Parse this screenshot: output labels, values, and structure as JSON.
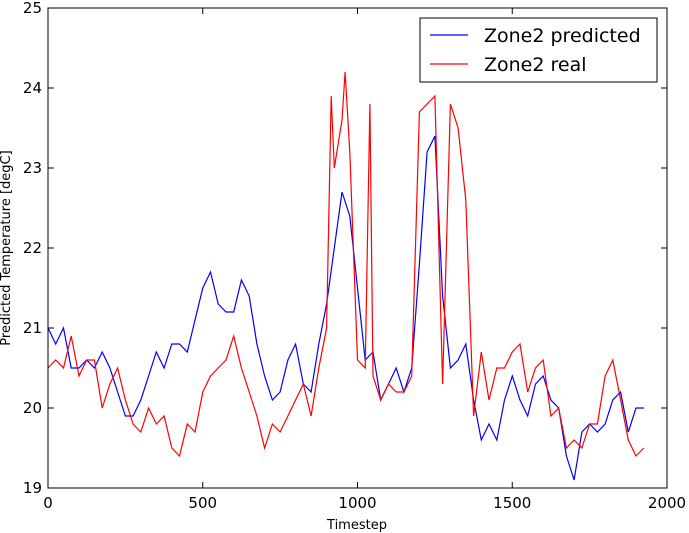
{
  "chart_data": {
    "type": "line",
    "xlabel": "Timestep",
    "ylabel": "Predicted Temperature [degC]",
    "xlim": [
      0,
      2000
    ],
    "ylim": [
      19,
      25
    ],
    "xticks": [
      0,
      500,
      1000,
      1500,
      2000
    ],
    "yticks": [
      19,
      20,
      21,
      22,
      23,
      24,
      25
    ],
    "grid": false,
    "legend": "upper right",
    "series": [
      {
        "name": "Zone2 predicted",
        "color": "#0000ff",
        "x": [
          0,
          25,
          50,
          75,
          100,
          125,
          150,
          175,
          200,
          225,
          250,
          275,
          300,
          325,
          350,
          375,
          400,
          425,
          450,
          475,
          500,
          525,
          550,
          575,
          600,
          625,
          650,
          675,
          700,
          725,
          750,
          775,
          800,
          825,
          850,
          875,
          900,
          925,
          950,
          975,
          1000,
          1025,
          1050,
          1075,
          1100,
          1125,
          1150,
          1175,
          1200,
          1225,
          1250,
          1275,
          1300,
          1325,
          1350,
          1375,
          1400,
          1425,
          1450,
          1475,
          1500,
          1525,
          1550,
          1575,
          1600,
          1625,
          1650,
          1675,
          1700,
          1725,
          1750,
          1775,
          1800,
          1825,
          1850,
          1875,
          1900,
          1925
        ],
        "values": [
          21.0,
          20.8,
          21.0,
          20.5,
          20.5,
          20.6,
          20.5,
          20.7,
          20.5,
          20.2,
          19.9,
          19.9,
          20.1,
          20.4,
          20.7,
          20.5,
          20.8,
          20.8,
          20.7,
          21.1,
          21.5,
          21.7,
          21.3,
          21.2,
          21.2,
          21.6,
          21.4,
          20.8,
          20.4,
          20.1,
          20.2,
          20.6,
          20.8,
          20.3,
          20.2,
          20.8,
          21.3,
          22.0,
          22.7,
          22.4,
          21.5,
          20.6,
          20.7,
          20.1,
          20.3,
          20.5,
          20.2,
          20.5,
          21.8,
          23.2,
          23.4,
          21.4,
          20.5,
          20.6,
          20.8,
          20.1,
          19.6,
          19.8,
          19.6,
          20.1,
          20.4,
          20.1,
          19.9,
          20.3,
          20.4,
          20.1,
          20.0,
          19.4,
          19.1,
          19.7,
          19.8,
          19.7,
          19.8,
          20.1,
          20.2,
          19.7,
          20.0,
          20.0
        ]
      },
      {
        "name": "Zone2 real",
        "color": "#ff0000",
        "x": [
          0,
          25,
          50,
          75,
          100,
          125,
          150,
          175,
          200,
          225,
          250,
          275,
          300,
          325,
          350,
          375,
          400,
          425,
          450,
          475,
          500,
          525,
          550,
          575,
          600,
          625,
          650,
          675,
          700,
          725,
          750,
          775,
          800,
          825,
          850,
          875,
          900,
          915,
          925,
          950,
          960,
          975,
          1000,
          1025,
          1040,
          1050,
          1075,
          1100,
          1125,
          1150,
          1175,
          1200,
          1225,
          1250,
          1275,
          1300,
          1325,
          1350,
          1375,
          1400,
          1425,
          1450,
          1475,
          1500,
          1525,
          1550,
          1575,
          1600,
          1625,
          1650,
          1675,
          1700,
          1725,
          1750,
          1775,
          1800,
          1825,
          1850,
          1875,
          1900,
          1925
        ],
        "values": [
          20.5,
          20.6,
          20.5,
          20.9,
          20.4,
          20.6,
          20.6,
          20.0,
          20.3,
          20.5,
          20.1,
          19.8,
          19.7,
          20.0,
          19.8,
          19.9,
          19.5,
          19.4,
          19.8,
          19.7,
          20.2,
          20.4,
          20.5,
          20.6,
          20.9,
          20.5,
          20.2,
          19.9,
          19.5,
          19.8,
          19.7,
          19.9,
          20.1,
          20.3,
          19.9,
          20.5,
          21.0,
          23.9,
          23.0,
          23.6,
          24.2,
          23.2,
          20.6,
          20.5,
          23.8,
          20.4,
          20.1,
          20.3,
          20.2,
          20.2,
          20.4,
          23.7,
          23.8,
          23.9,
          20.3,
          23.8,
          23.5,
          22.6,
          19.9,
          20.7,
          20.1,
          20.5,
          20.5,
          20.7,
          20.8,
          20.2,
          20.5,
          20.6,
          19.9,
          20.0,
          19.5,
          19.6,
          19.5,
          19.8,
          19.8,
          20.4,
          20.6,
          20.1,
          19.6,
          19.4,
          19.5
        ]
      }
    ]
  }
}
